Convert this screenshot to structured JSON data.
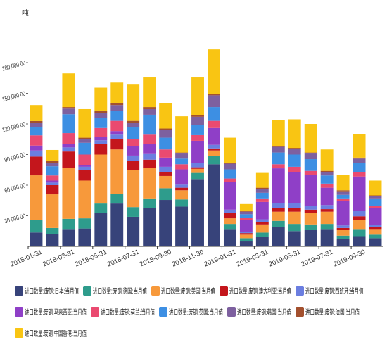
{
  "chart_data": {
    "type": "bar",
    "stacked": true,
    "title": "",
    "xlabel": "",
    "ylabel": "吨",
    "ylim": [
      0,
      200000
    ],
    "grid": false,
    "legend_position": "bottom",
    "yticks": [
      {
        "value": 30000,
        "label": "30,000.00"
      },
      {
        "value": 60000,
        "label": "60,000.00"
      },
      {
        "value": 90000,
        "label": "90,000.00"
      },
      {
        "value": 120000,
        "label": "120,000.00"
      },
      {
        "value": 150000,
        "label": "150,000.00"
      },
      {
        "value": 180000,
        "label": "180,000.00"
      }
    ],
    "xticks": [
      "2018-01-31",
      "2018-03-31",
      "2018-05-31",
      "2018-07-31",
      "2018-09-30",
      "2018-11-30",
      "2019-01-31",
      "2019-03-31",
      "2019-05-31",
      "2019-07-31",
      "2019-09-30"
    ],
    "series": [
      {
        "name": "进口数量:废钢:日本:当月值",
        "color": "#37437a",
        "values": [
          13600,
          12000,
          17000,
          17500,
          33000,
          42000,
          29000,
          37500,
          45500,
          39000,
          66000,
          80500,
          17000,
          5500,
          9500,
          19000,
          15000,
          16500,
          17000,
          7000,
          10000,
          8000
        ]
      },
      {
        "name": "进口数量:废钢:德国:当月值",
        "color": "#2e9c8c",
        "values": [
          12000,
          6000,
          10000,
          10000,
          9000,
          9500,
          9500,
          9500,
          11500,
          7000,
          6000,
          8000,
          5000,
          2500,
          4000,
          6000,
          7000,
          5000,
          5000,
          3500,
          7000,
          3500
        ]
      },
      {
        "name": "进口数量:废钢:美国:当月值",
        "color": "#f7993b",
        "values": [
          44000,
          33000,
          50000,
          37000,
          48000,
          43500,
          36000,
          30000,
          12000,
          9000,
          4000,
          5500,
          5500,
          3500,
          8000,
          9000,
          12000,
          11000,
          12000,
          5500,
          9000,
          5500
        ]
      },
      {
        "name": "进口数量:废钢:澳大利亚:当月值",
        "color": "#c4161c",
        "values": [
          18400,
          9000,
          16000,
          10000,
          10000,
          10000,
          9000,
          8000,
          3500,
          2500,
          1500,
          2000,
          5000,
          1500,
          2500,
          3500,
          3500,
          3500,
          2500,
          2000,
          3500,
          2000
        ]
      },
      {
        "name": "进口数量:废钢:西班牙:当月值",
        "color": "#6b7ee0",
        "values": [
          6000,
          2500,
          4000,
          3500,
          4000,
          4500,
          5500,
          5500,
          5500,
          3000,
          4000,
          3500,
          3500,
          1500,
          2500,
          5000,
          5000,
          4000,
          4000,
          2500,
          5000,
          2000
        ]
      },
      {
        "name": "进口数量:废钢:马来西亚:当月值",
        "color": "#8f3fc7",
        "values": [
          4800,
          2000,
          3000,
          2000,
          3000,
          3500,
          9000,
          10000,
          9000,
          15000,
          22000,
          16500,
          27000,
          11500,
          17000,
          34000,
          30500,
          30000,
          17000,
          24000,
          34000,
          16500
        ]
      },
      {
        "name": "进口数量:废钢:荷兰:当月值",
        "color": "#ea4a70",
        "values": [
          10000,
          5000,
          11000,
          10000,
          9000,
          10000,
          7500,
          9000,
          8000,
          5000,
          5500,
          7000,
          3500,
          2000,
          3500,
          4000,
          5000,
          4000,
          4000,
          2500,
          4000,
          2500
        ]
      },
      {
        "name": "进口数量:废钢:英国:当月值",
        "color": "#3d8fe3",
        "values": [
          8000,
          9000,
          18500,
          11500,
          10000,
          10000,
          11500,
          19500,
          11500,
          5500,
          10000,
          13500,
          9000,
          3500,
          5500,
          11500,
          12000,
          11500,
          8000,
          3500,
          9500,
          7000
        ]
      },
      {
        "name": "进口数量:废钢:韩国:当月值",
        "color": "#7d609f",
        "values": [
          4000,
          3500,
          5500,
          3500,
          5000,
          5500,
          4000,
          5500,
          7500,
          5000,
          8000,
          11500,
          5500,
          2500,
          4000,
          5500,
          5500,
          5500,
          3500,
          3500,
          4000,
          2500
        ]
      },
      {
        "name": "进口数量:废钢:法国:当月值",
        "color": "#a3502e",
        "values": [
          2000,
          1500,
          1500,
          1500,
          1500,
          2000,
          2000,
          2000,
          1500,
          1000,
          1500,
          1500,
          1000,
          500,
          1000,
          1000,
          1000,
          1000,
          1000,
          1000,
          1000,
          500
        ]
      },
      {
        "name": "进口数量:废钢:中国香港:当月值",
        "color": "#f9c513",
        "values": [
          15700,
          11000,
          33000,
          28000,
          23000,
          20000,
          35500,
          29000,
          25000,
          35500,
          37000,
          43500,
          24500,
          7000,
          14500,
          25000,
          28000,
          28000,
          21000,
          15000,
          23000,
          14500
        ]
      }
    ]
  }
}
